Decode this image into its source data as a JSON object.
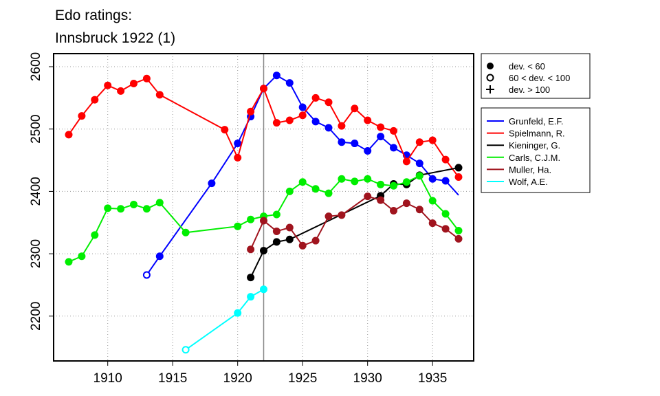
{
  "chart_data": {
    "type": "line",
    "title": [
      "Edo ratings:",
      "Innsbruck 1922 (1)"
    ],
    "xlabel": "",
    "ylabel": "",
    "xlim": [
      1906,
      1938.3
    ],
    "ylim": [
      2131,
      2620
    ],
    "x_ticks": [
      1910,
      1915,
      1920,
      1925,
      1930,
      1935
    ],
    "y_ticks": [
      2200,
      2300,
      2400,
      2500,
      2600
    ],
    "grid": true,
    "event_line_year": 1922,
    "point_legend": [
      {
        "symbol": "filled",
        "label": "dev. < 60"
      },
      {
        "symbol": "open",
        "label": "60 < dev. < 100"
      },
      {
        "symbol": "plus",
        "label": "dev. > 100"
      }
    ],
    "legend_position": "right",
    "series": [
      {
        "name": "Grunfeld, E.F.",
        "color": "#0000ff",
        "points": [
          [
            1913,
            2266,
            "open"
          ],
          [
            1914,
            2296,
            "filled"
          ],
          [
            1918,
            2413,
            "filled"
          ],
          [
            1920,
            2477,
            "filled"
          ],
          [
            1921,
            2520,
            "filled"
          ],
          [
            1922,
            2565,
            "filled"
          ],
          [
            1923,
            2586,
            "filled"
          ],
          [
            1924,
            2574,
            "filled"
          ],
          [
            1925,
            2535,
            "filled"
          ],
          [
            1926,
            2512,
            "filled"
          ],
          [
            1927,
            2502,
            "filled"
          ],
          [
            1928,
            2479,
            "filled"
          ],
          [
            1929,
            2477,
            "filled"
          ],
          [
            1930,
            2465,
            "filled"
          ],
          [
            1931,
            2488,
            "filled"
          ],
          [
            1932,
            2470,
            "filled"
          ],
          [
            1933,
            2458,
            "filled"
          ],
          [
            1934,
            2445,
            "filled"
          ],
          [
            1935,
            2420,
            "filled"
          ],
          [
            1936,
            2417,
            "filled"
          ],
          [
            1937,
            2394,
            "none"
          ]
        ]
      },
      {
        "name": "Spielmann, R.",
        "color": "#ff0000",
        "points": [
          [
            1907,
            2491,
            "filled"
          ],
          [
            1908,
            2521,
            "filled"
          ],
          [
            1909,
            2547,
            "filled"
          ],
          [
            1910,
            2570,
            "filled"
          ],
          [
            1911,
            2561,
            "filled"
          ],
          [
            1912,
            2573,
            "filled"
          ],
          [
            1913,
            2581,
            "filled"
          ],
          [
            1914,
            2555,
            "filled"
          ],
          [
            1919,
            2499,
            "filled"
          ],
          [
            1920,
            2454,
            "filled"
          ],
          [
            1921,
            2528,
            "filled"
          ],
          [
            1922,
            2565,
            "filled"
          ],
          [
            1923,
            2510,
            "filled"
          ],
          [
            1924,
            2514,
            "filled"
          ],
          [
            1925,
            2522,
            "filled"
          ],
          [
            1926,
            2550,
            "filled"
          ],
          [
            1927,
            2543,
            "filled"
          ],
          [
            1928,
            2505,
            "filled"
          ],
          [
            1929,
            2533,
            "filled"
          ],
          [
            1930,
            2514,
            "filled"
          ],
          [
            1931,
            2503,
            "filled"
          ],
          [
            1932,
            2497,
            "filled"
          ],
          [
            1933,
            2448,
            "filled"
          ],
          [
            1934,
            2479,
            "filled"
          ],
          [
            1935,
            2482,
            "filled"
          ],
          [
            1936,
            2451,
            "filled"
          ],
          [
            1937,
            2423,
            "filled"
          ]
        ]
      },
      {
        "name": "Kieninger, G.",
        "color": "#000000",
        "points": [
          [
            1921,
            2262,
            "filled"
          ],
          [
            1922,
            2305,
            "filled"
          ],
          [
            1923,
            2319,
            "filled"
          ],
          [
            1924,
            2323,
            "filled"
          ],
          [
            1931,
            2393,
            "filled"
          ],
          [
            1932,
            2412,
            "filled"
          ],
          [
            1933,
            2411,
            "filled"
          ],
          [
            1934,
            2426,
            "filled"
          ],
          [
            1937,
            2438,
            "filled"
          ]
        ]
      },
      {
        "name": "Carls, C.J.M.",
        "color": "#00ee00",
        "points": [
          [
            1907,
            2287,
            "filled"
          ],
          [
            1908,
            2296,
            "filled"
          ],
          [
            1909,
            2330,
            "filled"
          ],
          [
            1910,
            2373,
            "filled"
          ],
          [
            1911,
            2372,
            "filled"
          ],
          [
            1912,
            2379,
            "filled"
          ],
          [
            1913,
            2372,
            "filled"
          ],
          [
            1914,
            2382,
            "filled"
          ],
          [
            1916,
            2334,
            "filled"
          ],
          [
            1920,
            2344,
            "filled"
          ],
          [
            1921,
            2355,
            "filled"
          ],
          [
            1922,
            2360,
            "filled"
          ],
          [
            1923,
            2363,
            "filled"
          ],
          [
            1924,
            2400,
            "filled"
          ],
          [
            1925,
            2415,
            "filled"
          ],
          [
            1926,
            2404,
            "filled"
          ],
          [
            1927,
            2397,
            "filled"
          ],
          [
            1928,
            2420,
            "filled"
          ],
          [
            1929,
            2416,
            "filled"
          ],
          [
            1930,
            2420,
            "filled"
          ],
          [
            1931,
            2411,
            "filled"
          ],
          [
            1932,
            2409,
            "filled"
          ],
          [
            1933,
            2415,
            "filled"
          ],
          [
            1934,
            2425,
            "filled"
          ],
          [
            1935,
            2385,
            "filled"
          ],
          [
            1936,
            2364,
            "filled"
          ],
          [
            1937,
            2337,
            "filled"
          ]
        ]
      },
      {
        "name": "Muller, Ha.",
        "color": "#a0141e",
        "points": [
          [
            1921,
            2307,
            "filled"
          ],
          [
            1922,
            2353,
            "filled"
          ],
          [
            1923,
            2336,
            "filled"
          ],
          [
            1924,
            2342,
            "filled"
          ],
          [
            1925,
            2313,
            "filled"
          ],
          [
            1926,
            2321,
            "filled"
          ],
          [
            1927,
            2360,
            "filled"
          ],
          [
            1928,
            2362,
            "filled"
          ],
          [
            1930,
            2392,
            "filled"
          ],
          [
            1931,
            2386,
            "filled"
          ],
          [
            1932,
            2369,
            "filled"
          ],
          [
            1933,
            2381,
            "filled"
          ],
          [
            1934,
            2371,
            "filled"
          ],
          [
            1935,
            2349,
            "filled"
          ],
          [
            1936,
            2340,
            "filled"
          ],
          [
            1937,
            2324,
            "filled"
          ]
        ]
      },
      {
        "name": "Wolf, A.E.",
        "color": "#00ffff",
        "points": [
          [
            1916,
            2146,
            "open"
          ],
          [
            1920,
            2205,
            "filled"
          ],
          [
            1921,
            2231,
            "filled"
          ],
          [
            1922,
            2243,
            "filled"
          ]
        ]
      }
    ]
  }
}
